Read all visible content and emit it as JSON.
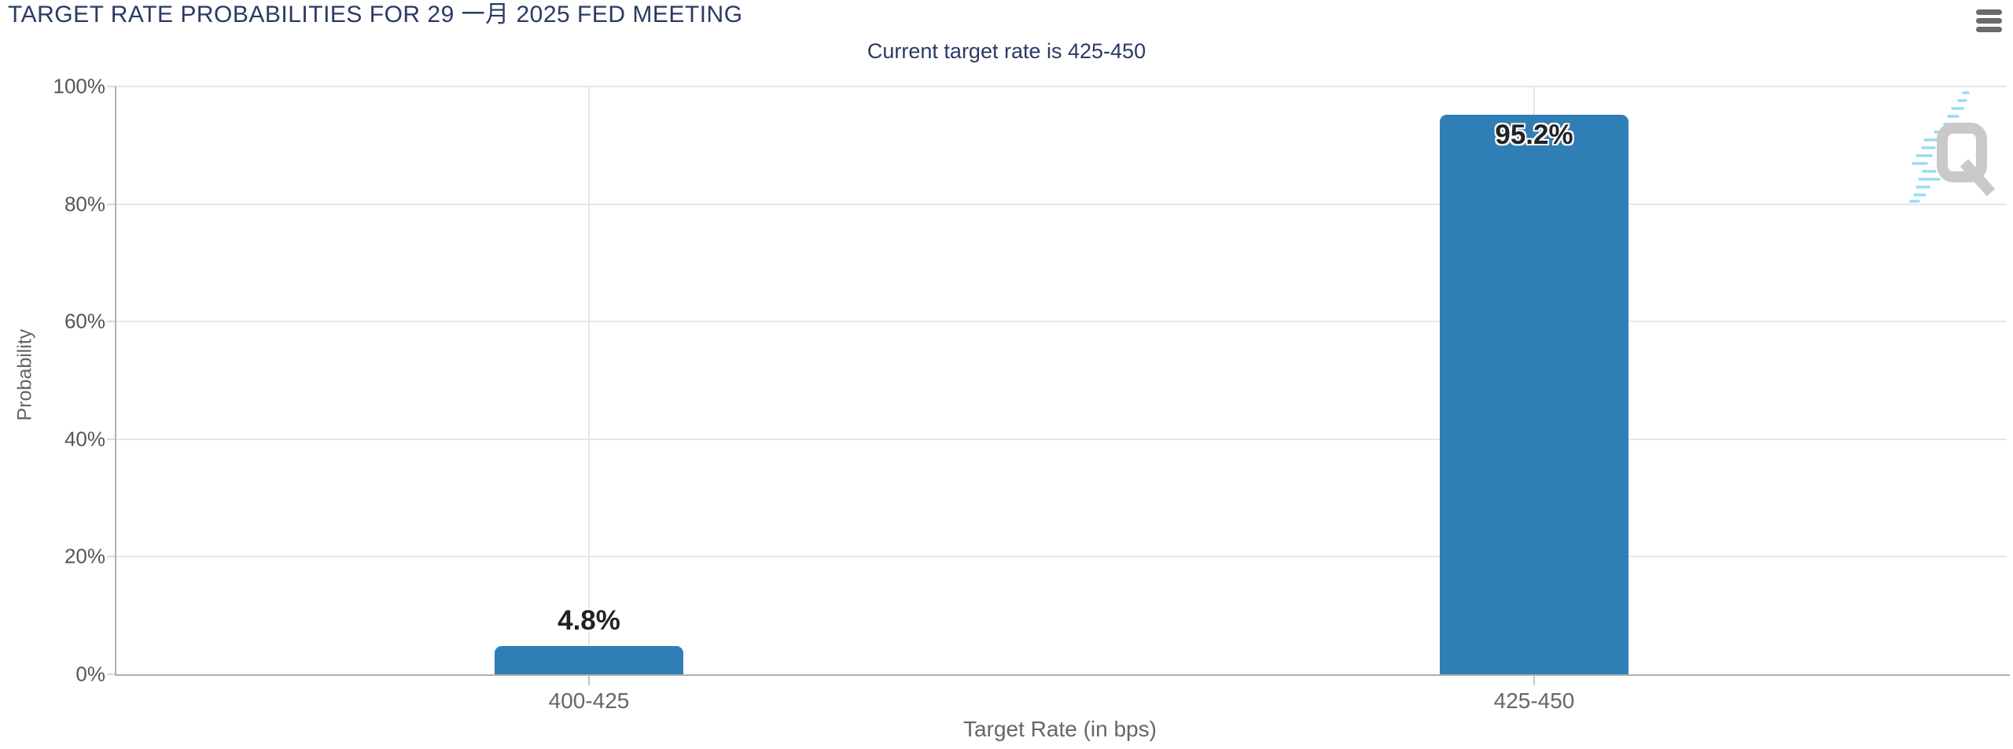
{
  "title": "TARGET RATE PROBABILITIES FOR 29 一月 2025 FED MEETING",
  "subtitle": "Current target rate is 425-450",
  "context_menu": {
    "icon": "hamburger-icon"
  },
  "watermark": {
    "letter": "Q"
  },
  "colors": {
    "bar": "#2f7eb6",
    "title_text": "#2b3a64",
    "axis_text": "#666666",
    "tick_text": "#555555",
    "gridline": "#e6e6e6",
    "axis_line": "#b0b0b0",
    "data_label": "#222222",
    "menu_icon": "#6b6b6b",
    "watermark_q": "#c9c9c9",
    "watermark_stripes": "#9adcf2"
  },
  "chart_data": {
    "type": "bar",
    "title": "TARGET RATE PROBABILITIES FOR 29 一月 2025 FED MEETING",
    "subtitle": "Current target rate is 425-450",
    "categories": [
      "400-425",
      "425-450"
    ],
    "values": [
      4.8,
      95.2
    ],
    "value_labels": [
      "4.8%",
      "95.2%"
    ],
    "xlabel": "Target Rate (in bps)",
    "ylabel": "Probability",
    "ylim": [
      0,
      100
    ],
    "yticks": [
      "0%",
      "20%",
      "40%",
      "60%",
      "80%",
      "100%"
    ],
    "grid": true,
    "legend_position": "none"
  }
}
